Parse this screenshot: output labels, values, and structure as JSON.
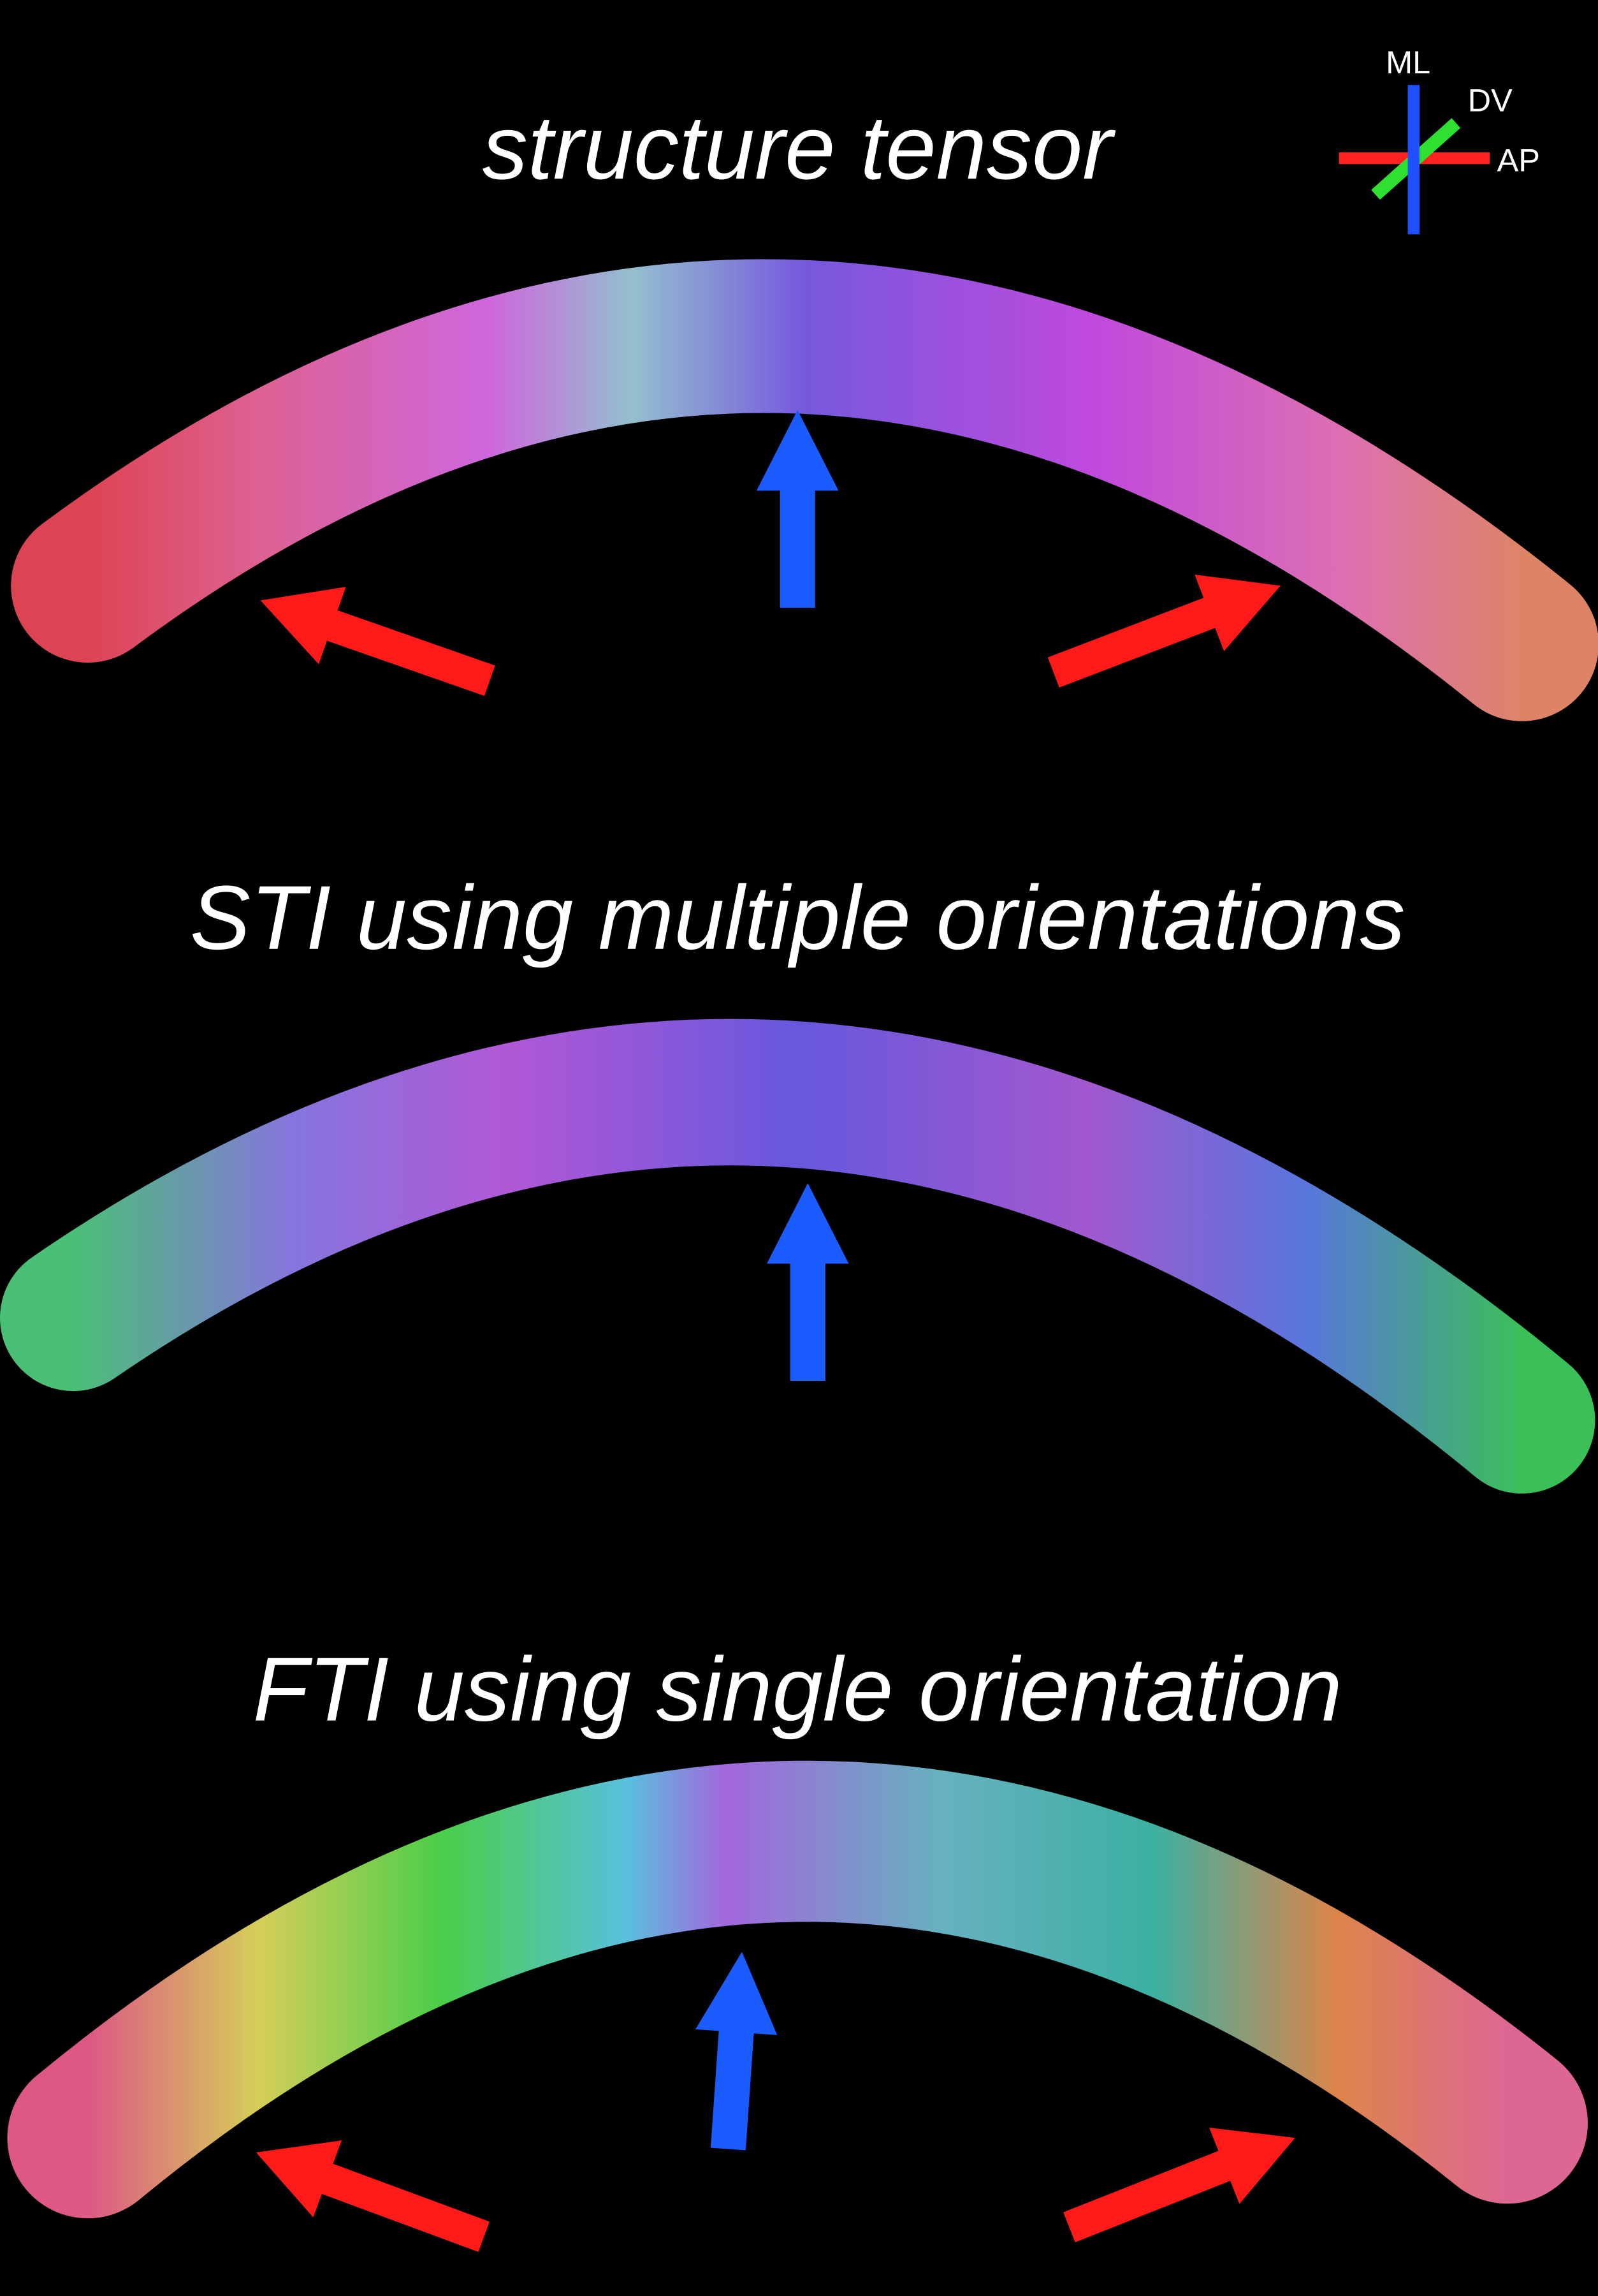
{
  "panels": [
    {
      "title": "structure tensor"
    },
    {
      "title": "STI using multiple orientations"
    },
    {
      "title": "FTI using single orientation"
    }
  ],
  "legend": {
    "labels": [
      "ML",
      "DV",
      "AP"
    ]
  }
}
